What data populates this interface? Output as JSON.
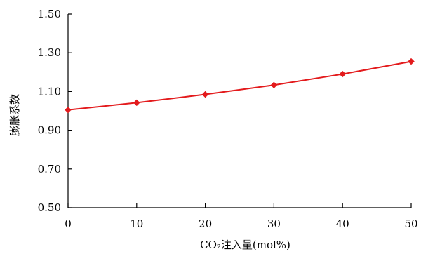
{
  "chart_data": {
    "type": "line",
    "title": "",
    "xlabel": "CO₂注入量(mol%)",
    "ylabel": "膨胀系数",
    "xlim": [
      0,
      50
    ],
    "ylim": [
      0.5,
      1.5
    ],
    "x_ticks": [
      "0",
      "10",
      "20",
      "30",
      "40",
      "50"
    ],
    "y_ticks": [
      "0.50",
      "0.70",
      "0.90",
      "1.10",
      "1.30",
      "1.50"
    ],
    "grid": false,
    "legend": "none",
    "series": [
      {
        "color": "#e31a1c",
        "marker": "diamond",
        "points": [
          {
            "x": 0,
            "y": 1.005
          },
          {
            "x": 10,
            "y": 1.042
          },
          {
            "x": 20,
            "y": 1.085
          },
          {
            "x": 30,
            "y": 1.133
          },
          {
            "x": 40,
            "y": 1.19
          },
          {
            "x": 50,
            "y": 1.255
          }
        ]
      }
    ]
  }
}
